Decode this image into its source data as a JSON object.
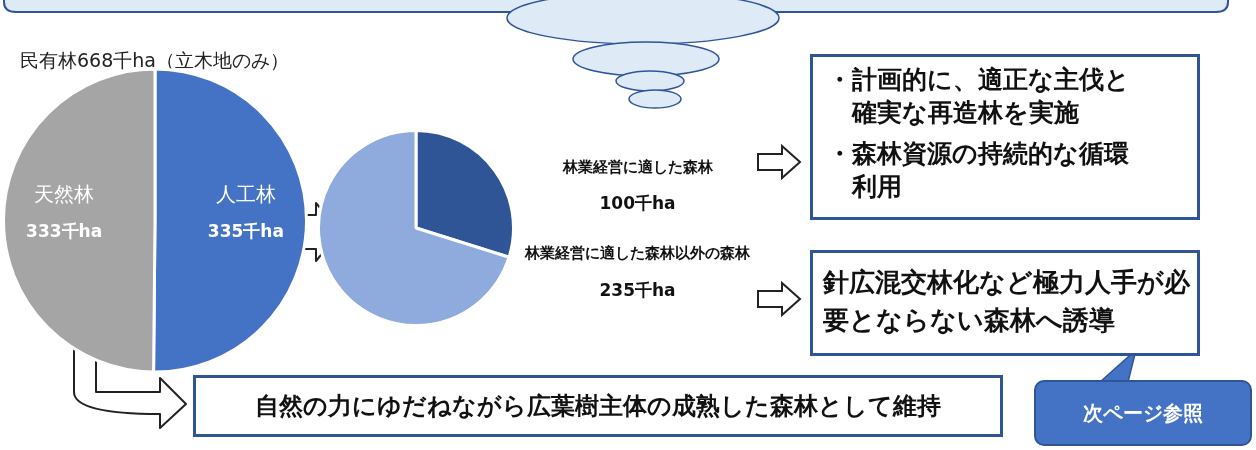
{
  "chart_data": [
    {
      "type": "pie",
      "title": "民有林668千ha（立木地のみ）",
      "categories": [
        "人工林",
        "天然林"
      ],
      "values": [
        335,
        333
      ],
      "value_labels": [
        "335千ha",
        "333千ha"
      ],
      "colors": [
        "#4472c4",
        "#a5a5a5"
      ],
      "annotations": [
        "自然の力にゆだねながら広葉樹主体の成熟した森林として維持"
      ]
    },
    {
      "type": "pie",
      "categories": [
        "林業経営に適した森林",
        "林業経営に適した森林以外の森林"
      ],
      "values": [
        100,
        235
      ],
      "value_labels": [
        "100千ha",
        "235千ha"
      ],
      "colors": [
        "#2f5597",
        "#8faadc"
      ],
      "annotations": [
        "・計画的に、適正な主伐と確実な再造林を実施",
        "・森林資源の持続的な循環利用",
        "針広混交林化など極力人手が必要とならない森林へ誘導",
        "次ページ参照"
      ]
    }
  ]
}
